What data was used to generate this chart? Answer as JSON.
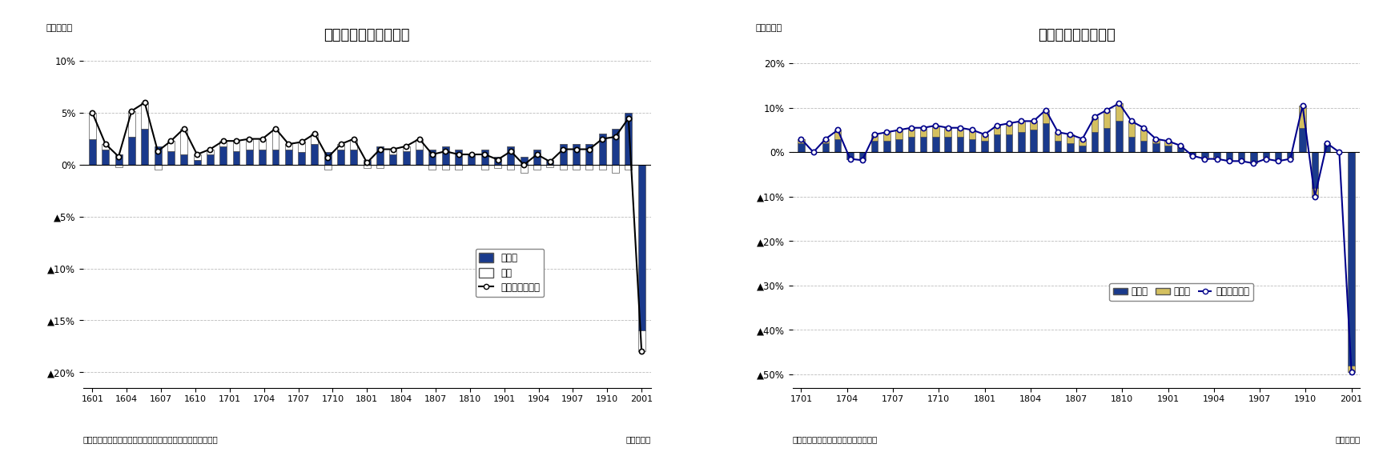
{
  "chart1": {
    "title": "外食産業売上高の推移",
    "ylabel": "（前年比）",
    "xlabel_unit": "（年・月）",
    "source": "（資料）日本フードサービス協会「外食産業市場動向調査」",
    "yticks": [
      0.1,
      0.05,
      0.0,
      -0.05,
      -0.1,
      -0.15,
      -0.2
    ],
    "ytick_labels": [
      "10%",
      "5%",
      "0%",
      "▲5%",
      "▲10%",
      "▲15%",
      "▲20%"
    ],
    "ylim": [
      -0.215,
      0.115
    ],
    "xtick_labels": [
      "1601",
      "1604",
      "1607",
      "1610",
      "1701",
      "1704",
      "1707",
      "1710",
      "1801",
      "1804",
      "1807",
      "1810",
      "1901",
      "1904",
      "1907",
      "1910",
      "2001"
    ],
    "bar_color_blue": "#1a3a8c",
    "bar_color_white": "#ffffff",
    "bar_edge_color": "#555555",
    "line_color": "#000000",
    "marker_color": "#ffffff",
    "marker_edge_color": "#000000",
    "grid_color": "#bbbbbb",
    "background_color": "#ffffff",
    "legend_labels": [
      "客単価",
      "客数",
      "外食産業売上高"
    ],
    "kyakutanka": [
      2.5,
      1.5,
      1.0,
      2.7,
      3.5,
      1.8,
      1.3,
      1.0,
      0.5,
      1.0,
      1.8,
      1.3,
      1.5,
      1.5,
      1.5,
      1.5,
      1.2,
      2.0,
      1.2,
      1.5,
      1.5,
      0.5,
      1.8,
      1.0,
      1.3,
      1.5,
      1.5,
      1.8,
      1.5,
      1.0,
      1.5,
      0.8,
      1.8,
      0.8,
      1.5,
      0.5,
      2.0,
      2.0,
      2.0,
      3.0,
      3.5,
      5.0,
      -16.0
    ],
    "kyakusu": [
      2.5,
      0.5,
      -0.2,
      2.5,
      2.5,
      -0.5,
      1.0,
      2.5,
      0.5,
      0.5,
      0.5,
      1.0,
      1.0,
      1.0,
      2.0,
      0.5,
      1.0,
      1.0,
      -0.5,
      0.5,
      1.0,
      -0.3,
      -0.3,
      0.5,
      0.5,
      1.0,
      -0.5,
      -0.5,
      -0.5,
      0.0,
      -0.5,
      -0.3,
      -0.5,
      -0.8,
      -0.5,
      -0.2,
      -0.5,
      -0.5,
      -0.5,
      -0.5,
      -0.8,
      -0.5,
      -2.0
    ],
    "uriage": [
      5.0,
      2.0,
      0.8,
      5.2,
      6.0,
      1.3,
      2.3,
      3.5,
      1.0,
      1.5,
      2.3,
      2.3,
      2.5,
      2.5,
      3.5,
      2.0,
      2.2,
      3.0,
      0.7,
      2.0,
      2.5,
      0.2,
      1.5,
      1.5,
      1.8,
      2.5,
      1.0,
      1.3,
      1.0,
      1.0,
      1.0,
      0.5,
      1.3,
      0.0,
      1.0,
      0.3,
      1.5,
      1.5,
      1.5,
      2.5,
      2.7,
      4.5,
      -18.0
    ]
  },
  "chart2": {
    "title": "延べ宿泊者数の推移",
    "ylabel": "（前年比）",
    "xlabel_unit": "（年・月）",
    "source": "（資料）観光庁「宿泊旅行統計調査」",
    "yticks": [
      0.2,
      0.1,
      0.0,
      -0.1,
      -0.2,
      -0.3,
      -0.4,
      -0.5
    ],
    "ytick_labels": [
      "20%",
      "10%",
      "0%",
      "▲10%",
      "▲20%",
      "▲30%",
      "▲40%",
      "▲50%"
    ],
    "ylim": [
      -0.53,
      0.24
    ],
    "xtick_labels": [
      "1701",
      "1704",
      "1707",
      "1710",
      "1801",
      "1804",
      "1807",
      "1810",
      "1901",
      "1904",
      "1907",
      "1910",
      "2001"
    ],
    "bar_color_blue": "#1a3a8c",
    "bar_color_yellow": "#d4c060",
    "bar_edge_color": "#555555",
    "line_color": "#00008b",
    "marker_color": "#ffffff",
    "marker_edge_color": "#00008b",
    "grid_color": "#bbbbbb",
    "background_color": "#ffffff",
    "legend_labels": [
      "日本人",
      "外国人",
      "延べ宿泊者数"
    ],
    "nihonjin": [
      2.0,
      0.0,
      2.0,
      3.0,
      -1.5,
      -1.8,
      2.5,
      2.5,
      3.0,
      3.5,
      3.5,
      3.5,
      3.5,
      3.5,
      3.0,
      2.5,
      4.0,
      4.0,
      4.5,
      5.0,
      6.5,
      2.5,
      2.0,
      1.5,
      4.5,
      5.5,
      7.0,
      3.5,
      2.5,
      2.0,
      1.5,
      1.0,
      -0.5,
      -1.0,
      -1.0,
      -1.5,
      -1.5,
      -2.0,
      -1.0,
      -1.5,
      -1.0,
      5.5,
      -8.0,
      2.0,
      0.0,
      -48.0
    ],
    "gaikokujin": [
      1.0,
      0.0,
      1.0,
      2.0,
      0.0,
      0.0,
      1.5,
      2.0,
      2.0,
      2.0,
      2.0,
      2.5,
      2.0,
      2.0,
      2.0,
      1.5,
      2.0,
      2.5,
      2.5,
      2.0,
      3.0,
      2.0,
      2.0,
      1.5,
      3.5,
      4.0,
      4.0,
      3.5,
      3.0,
      1.0,
      1.0,
      0.5,
      -0.3,
      -0.5,
      -0.5,
      -0.5,
      -0.5,
      -0.5,
      -0.5,
      -0.5,
      -0.5,
      5.0,
      -2.0,
      0.0,
      0.0,
      -1.5
    ],
    "nobehakusha": [
      3.0,
      0.0,
      3.0,
      5.0,
      -1.5,
      -1.8,
      4.0,
      4.5,
      5.0,
      5.5,
      5.5,
      6.0,
      5.5,
      5.5,
      5.0,
      4.0,
      6.0,
      6.5,
      7.0,
      7.0,
      9.5,
      4.5,
      4.0,
      3.0,
      8.0,
      9.5,
      11.0,
      7.0,
      5.5,
      3.0,
      2.5,
      1.5,
      -0.8,
      -1.5,
      -1.5,
      -2.0,
      -2.0,
      -2.5,
      -1.5,
      -2.0,
      -1.5,
      10.5,
      -10.0,
      2.0,
      0.0,
      -49.5
    ]
  }
}
